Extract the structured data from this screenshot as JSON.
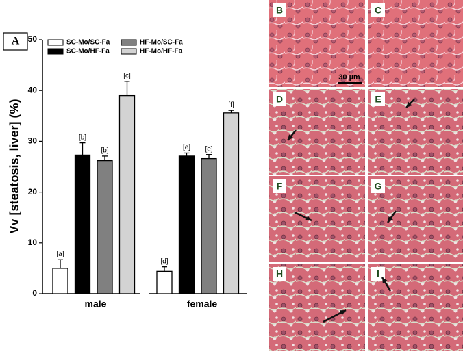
{
  "chart_data": {
    "type": "bar",
    "panel_label": "A",
    "ylabel": "Vv [steatosis, liver] (%)",
    "categories": [
      "male",
      "female"
    ],
    "series": [
      {
        "name": "SC-Mo/SC-Fa",
        "color": "#ffffff",
        "values": [
          5.0,
          4.4
        ],
        "errors": [
          1.7,
          0.9
        ],
        "labels": [
          "[a]",
          "[d]"
        ]
      },
      {
        "name": "SC-Mo/HF-Fa",
        "color": "#000000",
        "values": [
          27.3,
          27.1
        ],
        "errors": [
          2.4,
          0.6
        ],
        "labels": [
          "[b]",
          "[e]"
        ]
      },
      {
        "name": "HF-Mo/SC-Fa",
        "color": "#808080",
        "values": [
          26.2,
          26.6
        ],
        "errors": [
          0.9,
          0.8
        ],
        "labels": [
          "[b]",
          "[e]"
        ]
      },
      {
        "name": "HF-Mo/HF-Fa",
        "color": "#d3d3d3",
        "values": [
          39.0,
          35.6
        ],
        "errors": [
          2.8,
          0.5
        ],
        "labels": [
          "[c]",
          "[f]"
        ]
      }
    ],
    "ylim": [
      0,
      50
    ],
    "yticks": [
      0,
      10,
      20,
      30,
      40,
      50
    ],
    "grid": false
  },
  "micrographs": {
    "panels": [
      "B",
      "C",
      "D",
      "E",
      "F",
      "G",
      "H",
      "I"
    ],
    "scale_bar": "30 µm"
  }
}
